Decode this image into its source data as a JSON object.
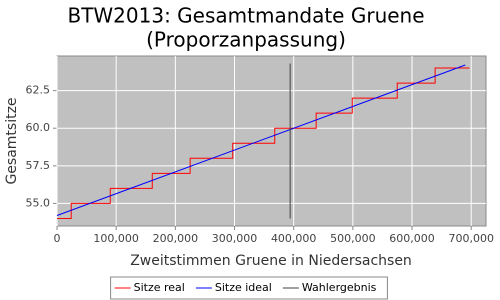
{
  "chart_data": {
    "type": "line",
    "title": "BTW2013: Gesamtmandate Gruene",
    "subtitle": "(Proporzanpassung)",
    "x_label": "Zweitstimmen Gruene in Niedersachsen",
    "y_label": "Gesamtsitze",
    "xlim": [
      0,
      725000
    ],
    "ylim": [
      53.5,
      64.8
    ],
    "xticks": [
      0,
      {
        "value": 100000,
        "label": "100,000"
      },
      {
        "value": 200000,
        "label": "200,000"
      },
      {
        "value": 300000,
        "label": "300,000"
      },
      {
        "value": 400000,
        "label": "400,000"
      },
      {
        "value": 500000,
        "label": "500,000"
      },
      {
        "value": 600000,
        "label": "600,000"
      },
      {
        "value": 700000,
        "label": "700,000"
      }
    ],
    "yticks": [
      {
        "value": 55,
        "label": "55.0"
      },
      57.5,
      {
        "value": 60,
        "label": "60.0"
      },
      62.5
    ],
    "grid": true,
    "legend": "bottom",
    "series": [
      {
        "name": "Sitze real",
        "color": "#ff0000",
        "x": [
          0,
          24000,
          24000,
          90000,
          90000,
          161000,
          161000,
          225000,
          225000,
          297000,
          297000,
          368000,
          368000,
          438000,
          438000,
          499000,
          499000,
          575000,
          575000,
          639000,
          639000,
          697000
        ],
        "values": [
          54,
          54,
          55,
          55,
          56,
          56,
          57,
          57,
          58,
          58,
          59,
          59,
          60,
          60,
          61,
          61,
          62,
          62,
          63,
          63,
          64,
          64
        ]
      },
      {
        "name": "Sitze ideal",
        "color": "#0000ff",
        "x": [
          0,
          690000
        ],
        "values": [
          54.2,
          64.2
        ]
      },
      {
        "name": "Wahlergebnis",
        "color": "#404040",
        "x": [
          394000,
          394000
        ],
        "values": [
          54.0,
          64.3
        ]
      }
    ]
  }
}
